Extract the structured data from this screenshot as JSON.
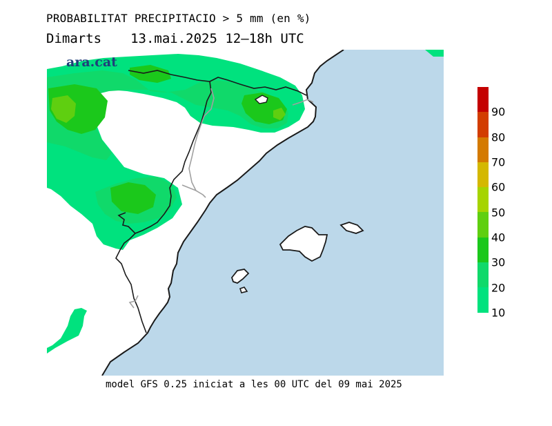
{
  "title": "PROBABILITAT PRECIPITACIO > 5 mm (en %)",
  "subtitle": {
    "day": "Dimarts",
    "period": "13.mai.2025 12–18h UTC"
  },
  "logo_text": "ara.cat",
  "footer": "model GFS 0.25 iniciat a les 00 UTC del 09 mai 2025",
  "colors": {
    "sea": "#bcd8ea",
    "land": "#ffffff",
    "coast": "#1a1a1a",
    "border": "#a0a0a0"
  },
  "legend": {
    "labels": [
      "90",
      "80",
      "70",
      "60",
      "50",
      "40",
      "30",
      "20",
      "10"
    ],
    "colors": [
      "#c40000",
      "#d23d00",
      "#d47a00",
      "#d4b800",
      "#a6d400",
      "#5fcf10",
      "#1bc81b",
      "#10d96a",
      "#00e27e"
    ]
  }
}
